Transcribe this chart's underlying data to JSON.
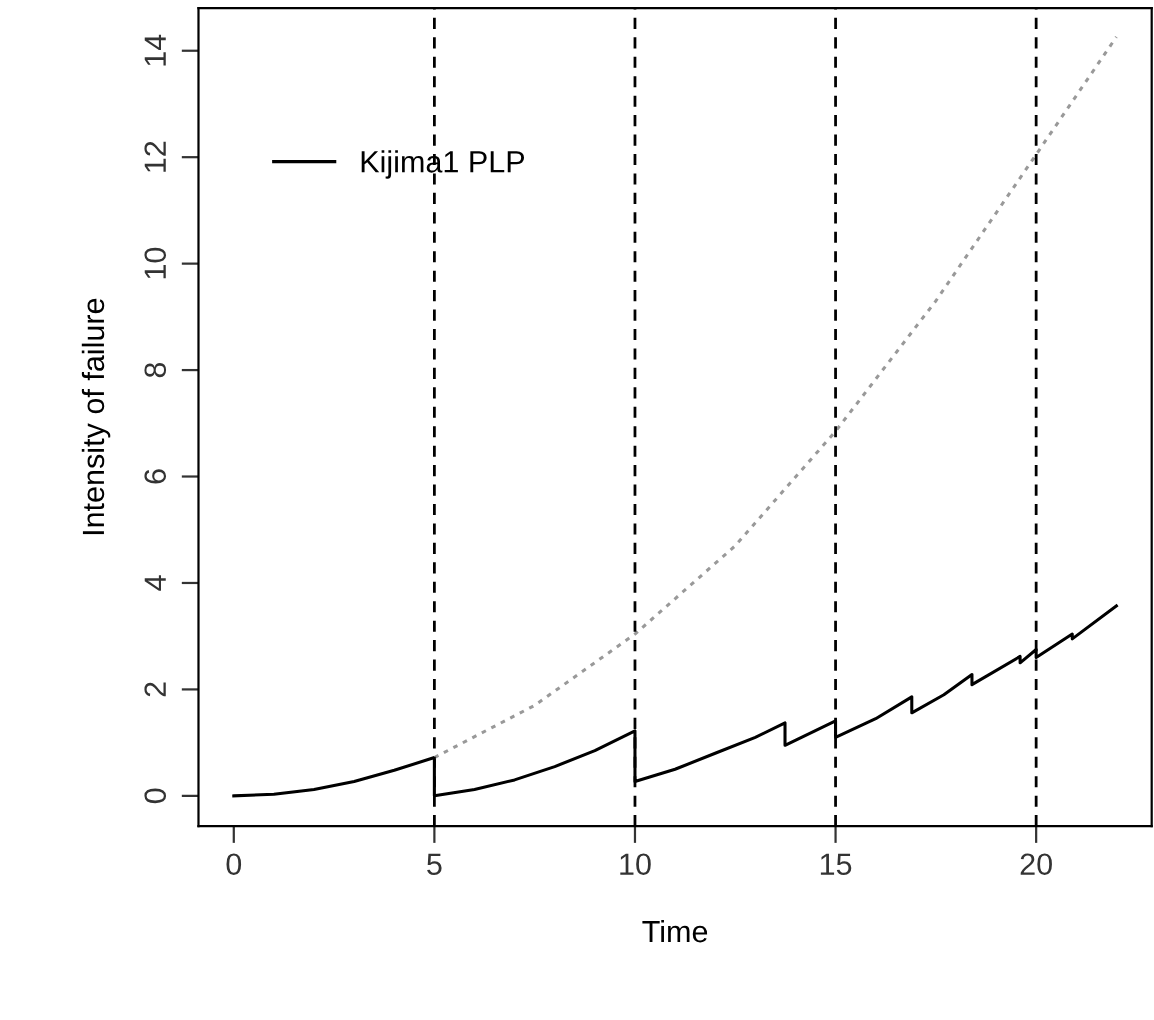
{
  "chart_data": {
    "type": "line",
    "xlabel": "Time",
    "ylabel": "Intensity of failure",
    "xlim": [
      -0.88,
      22.88
    ],
    "ylim": [
      -0.57,
      14.8
    ],
    "xticks": [
      0,
      5,
      10,
      15,
      20
    ],
    "yticks": [
      0,
      2,
      4,
      6,
      8,
      10,
      12,
      14
    ],
    "grid": false,
    "legend": "top left",
    "marker": "none",
    "series": [
      {
        "name": "Kijima1 PLP",
        "color": "#000000",
        "line_style": "solid",
        "x": [
          0,
          1,
          2,
          3,
          4,
          5,
          5,
          6,
          7,
          8,
          9,
          10,
          10,
          11,
          12,
          13,
          13.74,
          13.74,
          15,
          15,
          16,
          16.9,
          16.9,
          17.7,
          18.4,
          18.4,
          19.6,
          19.6,
          20,
          20,
          20.9,
          20.9,
          22
        ],
        "values": [
          0,
          0.03,
          0.12,
          0.27,
          0.48,
          0.72,
          0,
          0.12,
          0.3,
          0.55,
          0.85,
          1.22,
          0.27,
          0.5,
          0.8,
          1.1,
          1.37,
          0.95,
          1.41,
          1.1,
          1.45,
          1.86,
          1.56,
          1.9,
          2.28,
          2.09,
          2.62,
          2.5,
          2.75,
          2.6,
          3.04,
          2.95,
          3.57
        ]
      },
      {
        "color": "#999999",
        "line_style": "dotted",
        "x": [
          5,
          7.5,
          10,
          12.5,
          15,
          17.5,
          20,
          22
        ],
        "values": [
          0.72,
          1.7,
          3.04,
          4.7,
          6.85,
          9.3,
          12.05,
          14.26
        ]
      }
    ],
    "ref_lines": [
      {
        "axis": "x",
        "value": 5,
        "line_style": "dashed",
        "color": "#000000"
      },
      {
        "axis": "x",
        "value": 10,
        "line_style": "dashed",
        "color": "#000000"
      },
      {
        "axis": "x",
        "value": 15,
        "line_style": "dashed",
        "color": "#000000"
      },
      {
        "axis": "x",
        "value": 20,
        "line_style": "dashed",
        "color": "#000000"
      }
    ]
  }
}
